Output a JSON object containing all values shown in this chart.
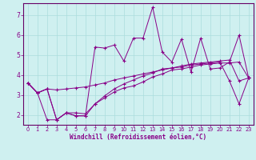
{
  "xlabel": "Windchill (Refroidissement éolien,°C)",
  "bg_color": "#cff0f0",
  "line_color": "#880088",
  "grid_color": "#aadddd",
  "spine_color": "#660066",
  "xlim": [
    -0.5,
    23.5
  ],
  "ylim": [
    1.5,
    7.6
  ],
  "xticks": [
    0,
    1,
    2,
    3,
    4,
    5,
    6,
    7,
    8,
    9,
    10,
    11,
    12,
    13,
    14,
    15,
    16,
    17,
    18,
    19,
    20,
    21,
    22,
    23
  ],
  "yticks": [
    2,
    3,
    4,
    5,
    6,
    7
  ],
  "lines": [
    {
      "x": [
        0,
        1,
        2,
        3,
        4,
        5,
        6,
        7,
        8,
        9,
        10,
        11,
        12,
        13,
        14,
        15,
        16,
        17,
        18,
        19,
        20,
        21,
        22,
        23
      ],
      "y": [
        3.6,
        3.1,
        3.3,
        1.75,
        2.1,
        1.95,
        1.95,
        2.55,
        2.85,
        3.15,
        3.35,
        3.45,
        3.65,
        3.9,
        4.05,
        4.25,
        4.3,
        4.4,
        4.5,
        4.55,
        4.6,
        4.6,
        4.65,
        3.85
      ]
    },
    {
      "x": [
        0,
        1,
        2,
        3,
        4,
        5,
        6,
        7,
        8,
        9,
        10,
        11,
        12,
        13,
        14,
        15,
        16,
        17,
        18,
        19,
        20,
        21,
        22,
        23
      ],
      "y": [
        3.6,
        3.1,
        3.3,
        1.75,
        2.1,
        1.95,
        1.95,
        5.4,
        5.35,
        5.5,
        4.7,
        5.85,
        5.85,
        7.4,
        5.15,
        4.65,
        5.8,
        4.15,
        5.85,
        4.3,
        4.35,
        4.65,
        6.0,
        3.85
      ]
    },
    {
      "x": [
        0,
        1,
        2,
        3,
        4,
        5,
        6,
        7,
        8,
        9,
        10,
        11,
        12,
        13,
        14,
        15,
        16,
        17,
        18,
        19,
        20,
        21,
        22,
        23
      ],
      "y": [
        3.6,
        3.1,
        3.3,
        3.25,
        3.3,
        3.35,
        3.4,
        3.5,
        3.6,
        3.75,
        3.85,
        3.95,
        4.05,
        4.15,
        4.25,
        4.35,
        4.45,
        4.55,
        4.6,
        4.65,
        4.7,
        4.75,
        3.7,
        3.85
      ]
    },
    {
      "x": [
        0,
        1,
        2,
        3,
        4,
        5,
        6,
        7,
        8,
        9,
        10,
        11,
        12,
        13,
        14,
        15,
        16,
        17,
        18,
        19,
        20,
        21,
        22,
        23
      ],
      "y": [
        3.6,
        3.1,
        1.75,
        1.75,
        2.1,
        2.1,
        2.05,
        2.55,
        2.95,
        3.3,
        3.55,
        3.75,
        3.95,
        4.1,
        4.3,
        4.35,
        4.4,
        4.5,
        4.55,
        4.6,
        4.65,
        3.7,
        2.55,
        3.85
      ]
    }
  ]
}
